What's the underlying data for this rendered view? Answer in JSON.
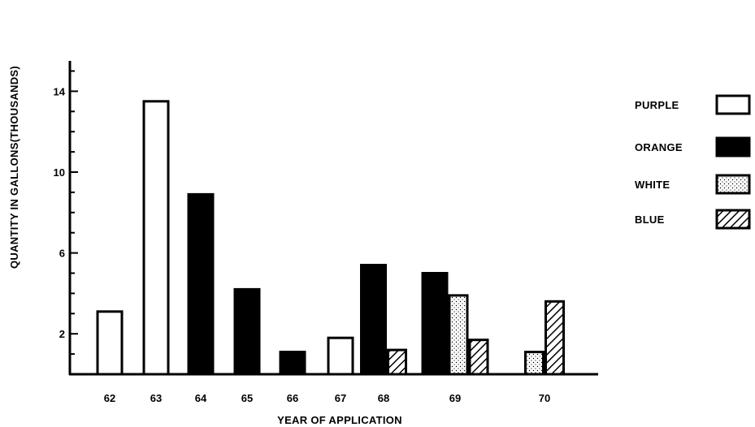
{
  "chart_data": {
    "type": "bar",
    "xlabel": "YEAR OF APPLICATION",
    "ylabel": "QUANTITY IN GALLONS(THOUSANDS)",
    "ylim": [
      0,
      15.5
    ],
    "yticks": [
      "2",
      "6",
      "10",
      "14"
    ],
    "ytick_values": [
      2,
      6,
      10,
      14
    ],
    "categories": [
      "62",
      "63",
      "64",
      "65",
      "66",
      "67",
      "68",
      "69",
      "70"
    ],
    "grid": false,
    "legend_position": "right",
    "series": [
      {
        "name": "PURPLE",
        "pattern": "hollow",
        "color": "#ffffff",
        "values": [
          3.1,
          13.5,
          null,
          null,
          null,
          1.8,
          null,
          null,
          null
        ]
      },
      {
        "name": "ORANGE",
        "pattern": "solid",
        "color": "#000000",
        "values": [
          null,
          null,
          8.9,
          4.2,
          1.1,
          null,
          5.4,
          5.0,
          null
        ]
      },
      {
        "name": "WHITE",
        "pattern": "dotted",
        "color": "#ffffff",
        "values": [
          null,
          null,
          null,
          null,
          null,
          null,
          null,
          3.9,
          1.1
        ]
      },
      {
        "name": "BLUE",
        "pattern": "hatched",
        "color": "#ffffff",
        "values": [
          null,
          null,
          null,
          null,
          null,
          null,
          1.2,
          1.7,
          3.6
        ]
      }
    ]
  }
}
